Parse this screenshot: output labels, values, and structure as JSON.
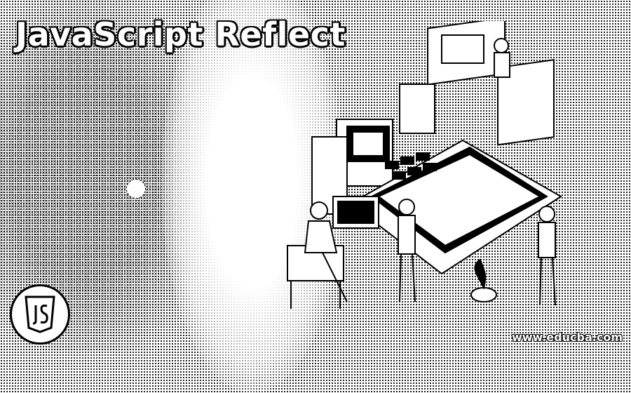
{
  "banner": {
    "title": "JavaScript Reflect",
    "website": "www.educba.com",
    "logo_icon": "js-shield-icon",
    "illustration_icon": "developers-workstation-illustration"
  }
}
